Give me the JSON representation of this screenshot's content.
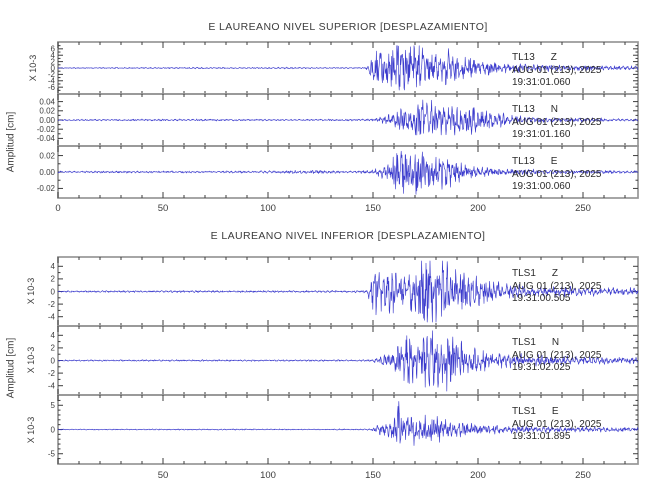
{
  "figure": {
    "background": "#ffffff",
    "waveform_color": "#3c3ccd",
    "frame_color": "#969696",
    "tick_color": "#3c3c3c",
    "text_color": "#3c3c3c"
  },
  "chart_data": {
    "type": "line",
    "description": "Two-panel three-component seismogram (displacement) for stations TL13 and TLS1",
    "x_units": "seconds",
    "panels": [
      {
        "title": "E LAUREANO NIVEL SUPERIOR [DESPLAZAMIENTO]",
        "ylabel": "Amplitud [cm]",
        "xlim": [
          0,
          276
        ],
        "xticks": [
          0,
          50,
          100,
          150,
          200,
          250
        ],
        "xtick_minor_step": 10,
        "traces": [
          {
            "station": "TL13",
            "component": "Z",
            "date": "AUG 01 (213), 2025",
            "time": "19:31:01.060",
            "scale_label": "X 10-3",
            "ytick_labels": [
              "6",
              "4",
              "2",
              "0",
              "-2",
              "-4",
              "-6"
            ],
            "ytick_values": [
              6,
              4,
              2,
              0,
              -2,
              -4,
              -6
            ],
            "ytick_minor_step": 1,
            "ymax": 7.2,
            "seed": 11,
            "envelope": [
              [
                0,
                0.12
              ],
              [
                40,
                0.14
              ],
              [
                70,
                0.18
              ],
              [
                90,
                0.13
              ],
              [
                110,
                0.2
              ],
              [
                130,
                0.14
              ],
              [
                146,
                0.15
              ],
              [
                148,
                1.2
              ],
              [
                150,
                3.2
              ],
              [
                154,
                4.6
              ],
              [
                158,
                4.0
              ],
              [
                161,
                6.4
              ],
              [
                165,
                5.2
              ],
              [
                169,
                6.2
              ],
              [
                173,
                4.6
              ],
              [
                177,
                5.6
              ],
              [
                181,
                3.8
              ],
              [
                186,
                4.4
              ],
              [
                190,
                3.0
              ],
              [
                196,
                2.2
              ],
              [
                203,
                1.6
              ],
              [
                212,
                1.1
              ],
              [
                225,
                0.8
              ],
              [
                240,
                0.65
              ],
              [
                260,
                0.5
              ],
              [
                276,
                0.4
              ]
            ]
          },
          {
            "station": "TL13",
            "component": "N",
            "date": "AUG 01 (213), 2025",
            "time": "19:31:01.160",
            "scale_label": null,
            "ytick_labels": [
              "0.04",
              "0.02",
              "0.00",
              "-0.02",
              "-0.04"
            ],
            "ytick_values": [
              0.04,
              0.02,
              0,
              -0.02,
              -0.04
            ],
            "ytick_minor_step": 0.01,
            "ymax": 0.05,
            "seed": 22,
            "envelope": [
              [
                0,
                0.0012
              ],
              [
                60,
                0.0016
              ],
              [
                100,
                0.0013
              ],
              [
                140,
                0.0015
              ],
              [
                150,
                0.002
              ],
              [
                155,
                0.006
              ],
              [
                160,
                0.012
              ],
              [
                164,
                0.022
              ],
              [
                168,
                0.018
              ],
              [
                172,
                0.03
              ],
              [
                175,
                0.038
              ],
              [
                178,
                0.03
              ],
              [
                183,
                0.022
              ],
              [
                188,
                0.026
              ],
              [
                193,
                0.02
              ],
              [
                198,
                0.022
              ],
              [
                204,
                0.015
              ],
              [
                210,
                0.011
              ],
              [
                218,
                0.007
              ],
              [
                228,
                0.004
              ],
              [
                240,
                0.003
              ],
              [
                255,
                0.0035
              ],
              [
                265,
                0.002
              ],
              [
                276,
                0.0018
              ]
            ]
          },
          {
            "station": "TL13",
            "component": "E",
            "date": "AUG 01 (213), 2025",
            "time": "19:31:00.060",
            "scale_label": null,
            "ytick_labels": [
              "0.02",
              "0.00",
              "-0.02"
            ],
            "ytick_values": [
              0.02,
              0,
              -0.02
            ],
            "ytick_minor_step": 0.01,
            "ymax": 0.028,
            "seed": 33,
            "envelope": [
              [
                0,
                0.0008
              ],
              [
                50,
                0.001
              ],
              [
                90,
                0.0009
              ],
              [
                120,
                0.0015
              ],
              [
                140,
                0.001
              ],
              [
                149,
                0.0015
              ],
              [
                153,
                0.004
              ],
              [
                158,
                0.008
              ],
              [
                161,
                0.018
              ],
              [
                164,
                0.024
              ],
              [
                167,
                0.02
              ],
              [
                170,
                0.024
              ],
              [
                174,
                0.016
              ],
              [
                179,
                0.012
              ],
              [
                184,
                0.014
              ],
              [
                189,
                0.01
              ],
              [
                194,
                0.007
              ],
              [
                200,
                0.005
              ],
              [
                208,
                0.0035
              ],
              [
                218,
                0.0025
              ],
              [
                232,
                0.002
              ],
              [
                250,
                0.0015
              ],
              [
                276,
                0.0012
              ]
            ]
          }
        ]
      },
      {
        "title": "E LAUREANO NIVEL INFERIOR [DESPLAZAMIENTO]",
        "ylabel": "Amplitud [cm]",
        "xlim": [
          0,
          276
        ],
        "xticks": [
          50,
          100,
          150,
          200,
          250
        ],
        "xtick_minor_step": 10,
        "traces": [
          {
            "station": "TLS1",
            "component": "Z",
            "date": "AUG 01 (213), 2025",
            "time": "19:31:00.505",
            "scale_label": "X 10-3",
            "ytick_labels": [
              "4",
              "2",
              "0",
              "-2",
              "-4"
            ],
            "ytick_values": [
              4,
              2,
              0,
              -2,
              -4
            ],
            "ytick_minor_step": 1,
            "ymax": 5,
            "seed": 44,
            "envelope": [
              [
                0,
                0.1
              ],
              [
                50,
                0.12
              ],
              [
                100,
                0.11
              ],
              [
                140,
                0.12
              ],
              [
                147,
                0.15
              ],
              [
                149,
                1.8
              ],
              [
                152,
                3.2
              ],
              [
                155,
                2.4
              ],
              [
                159,
                2.8
              ],
              [
                163,
                2.2
              ],
              [
                167,
                3.0
              ],
              [
                171,
                3.6
              ],
              [
                175,
                4.6
              ],
              [
                179,
                3.6
              ],
              [
                183,
                4.4
              ],
              [
                187,
                3.0
              ],
              [
                192,
                2.4
              ],
              [
                198,
                1.8
              ],
              [
                205,
                1.3
              ],
              [
                214,
                0.9
              ],
              [
                226,
                0.7
              ],
              [
                245,
                0.55
              ],
              [
                262,
                0.45
              ],
              [
                276,
                0.4
              ]
            ]
          },
          {
            "station": "TLS1",
            "component": "N",
            "date": "AUG 01 (213), 2025",
            "time": "19:31:02.025",
            "scale_label": "X 10-3",
            "ytick_labels": [
              "4",
              "2",
              "0",
              "-2",
              "-4"
            ],
            "ytick_values": [
              4,
              2,
              0,
              -2,
              -4
            ],
            "ytick_minor_step": 1,
            "ymax": 5,
            "seed": 55,
            "envelope": [
              [
                0,
                0.08
              ],
              [
                60,
                0.1
              ],
              [
                120,
                0.09
              ],
              [
                145,
                0.1
              ],
              [
                150,
                0.15
              ],
              [
                154,
                0.5
              ],
              [
                158,
                0.9
              ],
              [
                162,
                1.6
              ],
              [
                165,
                2.2
              ],
              [
                167,
                4.8
              ],
              [
                169,
                2.6
              ],
              [
                172,
                3.4
              ],
              [
                176,
                4.2
              ],
              [
                180,
                3.2
              ],
              [
                184,
                3.8
              ],
              [
                188,
                2.6
              ],
              [
                193,
                2.0
              ],
              [
                199,
                1.5
              ],
              [
                206,
                1.1
              ],
              [
                215,
                0.8
              ],
              [
                228,
                0.6
              ],
              [
                245,
                0.45
              ],
              [
                276,
                0.35
              ]
            ]
          },
          {
            "station": "TLS1",
            "component": "E",
            "date": "AUG 01 (213), 2025",
            "time": "19:31:01.895",
            "scale_label": "X 10-3",
            "ytick_labels": [
              "5",
              "0",
              "-5"
            ],
            "ytick_values": [
              5,
              0,
              -5
            ],
            "ytick_minor_step": 1,
            "ymax": 6.5,
            "seed": 66,
            "envelope": [
              [
                0,
                0.07
              ],
              [
                60,
                0.09
              ],
              [
                120,
                0.08
              ],
              [
                147,
                0.1
              ],
              [
                150,
                0.3
              ],
              [
                154,
                0.9
              ],
              [
                158,
                1.4
              ],
              [
                161,
                1.8
              ],
              [
                162.5,
                6.3
              ],
              [
                164,
                2.0
              ],
              [
                168,
                2.4
              ],
              [
                172,
                1.9
              ],
              [
                176,
                2.3
              ],
              [
                180,
                1.8
              ],
              [
                185,
                1.5
              ],
              [
                190,
                1.2
              ],
              [
                196,
                0.9
              ],
              [
                204,
                0.7
              ],
              [
                214,
                0.55
              ],
              [
                230,
                0.45
              ],
              [
                250,
                0.4
              ],
              [
                276,
                0.3
              ]
            ]
          }
        ]
      }
    ]
  }
}
